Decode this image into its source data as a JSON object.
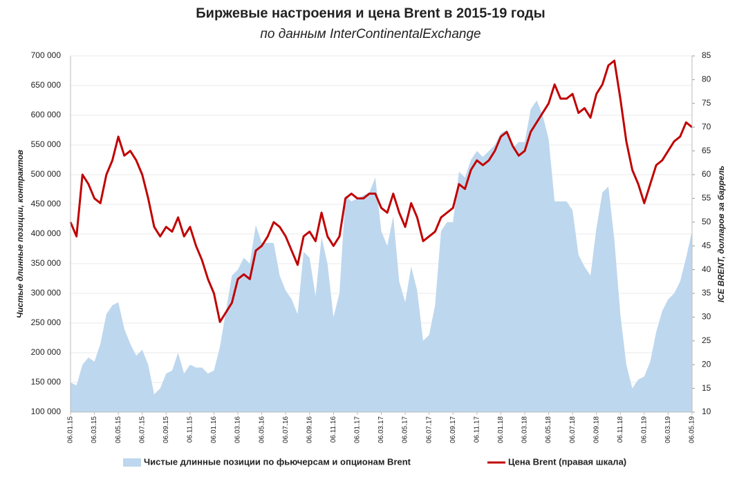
{
  "chart_data": {
    "type": "area-line",
    "title": "Биржевые настроения и цена Brent в 2015-19 годы",
    "subtitle": "по данным InterContinentalExchange",
    "y_label": "Чистые длинные позиции, контрактов",
    "y2_label": "ICE BRENT, долларов за баррель",
    "categories": [
      "06.01.15",
      null,
      null,
      null,
      "06.03.15",
      null,
      null,
      null,
      "06.05.15",
      null,
      null,
      null,
      "06.07.15",
      null,
      null,
      null,
      "06.09.15",
      null,
      null,
      null,
      "06.11.15",
      null,
      null,
      null,
      "06.01.16",
      null,
      null,
      null,
      "06.03.16",
      null,
      null,
      null,
      "06.05.16",
      null,
      null,
      null,
      "06.07.16",
      null,
      null,
      null,
      "06.09.16",
      null,
      null,
      null,
      "06.11.16",
      null,
      null,
      null,
      "06.01.17",
      null,
      null,
      null,
      "06.03.17",
      null,
      null,
      null,
      "06.05.17",
      null,
      null,
      null,
      "06.07.17",
      null,
      null,
      null,
      "06.09.17",
      null,
      null,
      null,
      "06.11.17",
      null,
      null,
      null,
      "06.01.18",
      null,
      null,
      null,
      "06.03.18",
      null,
      null,
      null,
      "06.05.18",
      null,
      null,
      null,
      "06.07.18",
      null,
      null,
      null,
      "06.09.18",
      null,
      null,
      null,
      "06.11.18",
      null,
      null,
      null,
      "06.01.19",
      null,
      null,
      null,
      "06.03.19",
      null,
      null,
      null,
      "06.05.19"
    ],
    "series": [
      {
        "name": "Чистые длинные позиции по фьючерсам и опционам Brent",
        "type": "area",
        "color": "#bdd7ee",
        "values": [
          150000,
          145000,
          180000,
          192000,
          185000,
          215000,
          265000,
          280000,
          285000,
          240000,
          215000,
          195000,
          205000,
          180000,
          130000,
          140000,
          165000,
          170000,
          200000,
          165000,
          180000,
          175000,
          175000,
          165000,
          170000,
          210000,
          270000,
          330000,
          340000,
          360000,
          350000,
          415000,
          385000,
          385000,
          385000,
          330000,
          305000,
          290000,
          265000,
          370000,
          360000,
          295000,
          395000,
          350000,
          260000,
          300000,
          465000,
          455000,
          460000,
          465000,
          470000,
          495000,
          405000,
          380000,
          430000,
          320000,
          285000,
          345000,
          305000,
          220000,
          230000,
          280000,
          405000,
          420000,
          420000,
          505000,
          495000,
          525000,
          540000,
          530000,
          540000,
          550000,
          570000,
          575000,
          545000,
          555000,
          555000,
          610000,
          625000,
          600000,
          560000,
          455000,
          455000,
          455000,
          440000,
          365000,
          345000,
          330000,
          410000,
          470000,
          480000,
          390000,
          265000,
          180000,
          140000,
          155000,
          160000,
          185000,
          235000,
          270000,
          290000,
          300000,
          320000,
          360000,
          405000
        ]
      },
      {
        "name": "Цена Brent (правая шкала)",
        "type": "line",
        "axis": "y2",
        "color": "#c00000",
        "values": [
          50,
          47,
          60,
          58,
          55,
          54,
          60,
          63,
          68,
          64,
          65,
          63,
          60,
          55,
          49,
          47,
          49,
          48,
          51,
          47,
          49,
          45,
          42,
          38,
          35,
          29,
          31,
          33,
          38,
          39,
          38,
          44,
          45,
          47,
          50,
          49,
          47,
          44,
          41,
          47,
          48,
          46,
          52,
          47,
          45,
          47,
          55,
          56,
          55,
          55,
          56,
          56,
          53,
          52,
          56,
          52,
          49,
          54,
          51,
          46,
          47,
          48,
          51,
          52,
          53,
          58,
          57,
          61,
          63,
          62,
          63,
          65,
          68,
          69,
          66,
          64,
          65,
          69,
          71,
          73,
          75,
          79,
          76,
          76,
          77,
          73,
          74,
          72,
          77,
          79,
          83,
          84,
          76,
          67,
          61,
          58,
          54,
          58,
          62,
          63,
          65,
          67,
          68,
          71,
          70
        ]
      }
    ],
    "ylim": [
      100000,
      700000
    ],
    "yticks": [
      {
        "value": 100000,
        "label": "100 000"
      },
      {
        "value": 150000,
        "label": "150 000"
      },
      {
        "value": 200000,
        "label": "200 000"
      },
      {
        "value": 250000,
        "label": "250 000"
      },
      {
        "value": 300000,
        "label": "300 000"
      },
      {
        "value": 350000,
        "label": "350 000"
      },
      {
        "value": 400000,
        "label": "400 000"
      },
      {
        "value": 450000,
        "label": "450 000"
      },
      {
        "value": 500000,
        "label": "500 000"
      },
      {
        "value": 550000,
        "label": "550 000"
      },
      {
        "value": 600000,
        "label": "600 000"
      },
      {
        "value": 650000,
        "label": "650 000"
      },
      {
        "value": 700000,
        "label": "700 000"
      }
    ],
    "y2lim": [
      10,
      85
    ],
    "y2ticks": [
      10,
      15,
      20,
      25,
      30,
      35,
      40,
      45,
      50,
      55,
      60,
      65,
      70,
      75,
      80,
      85
    ],
    "grid": true
  }
}
